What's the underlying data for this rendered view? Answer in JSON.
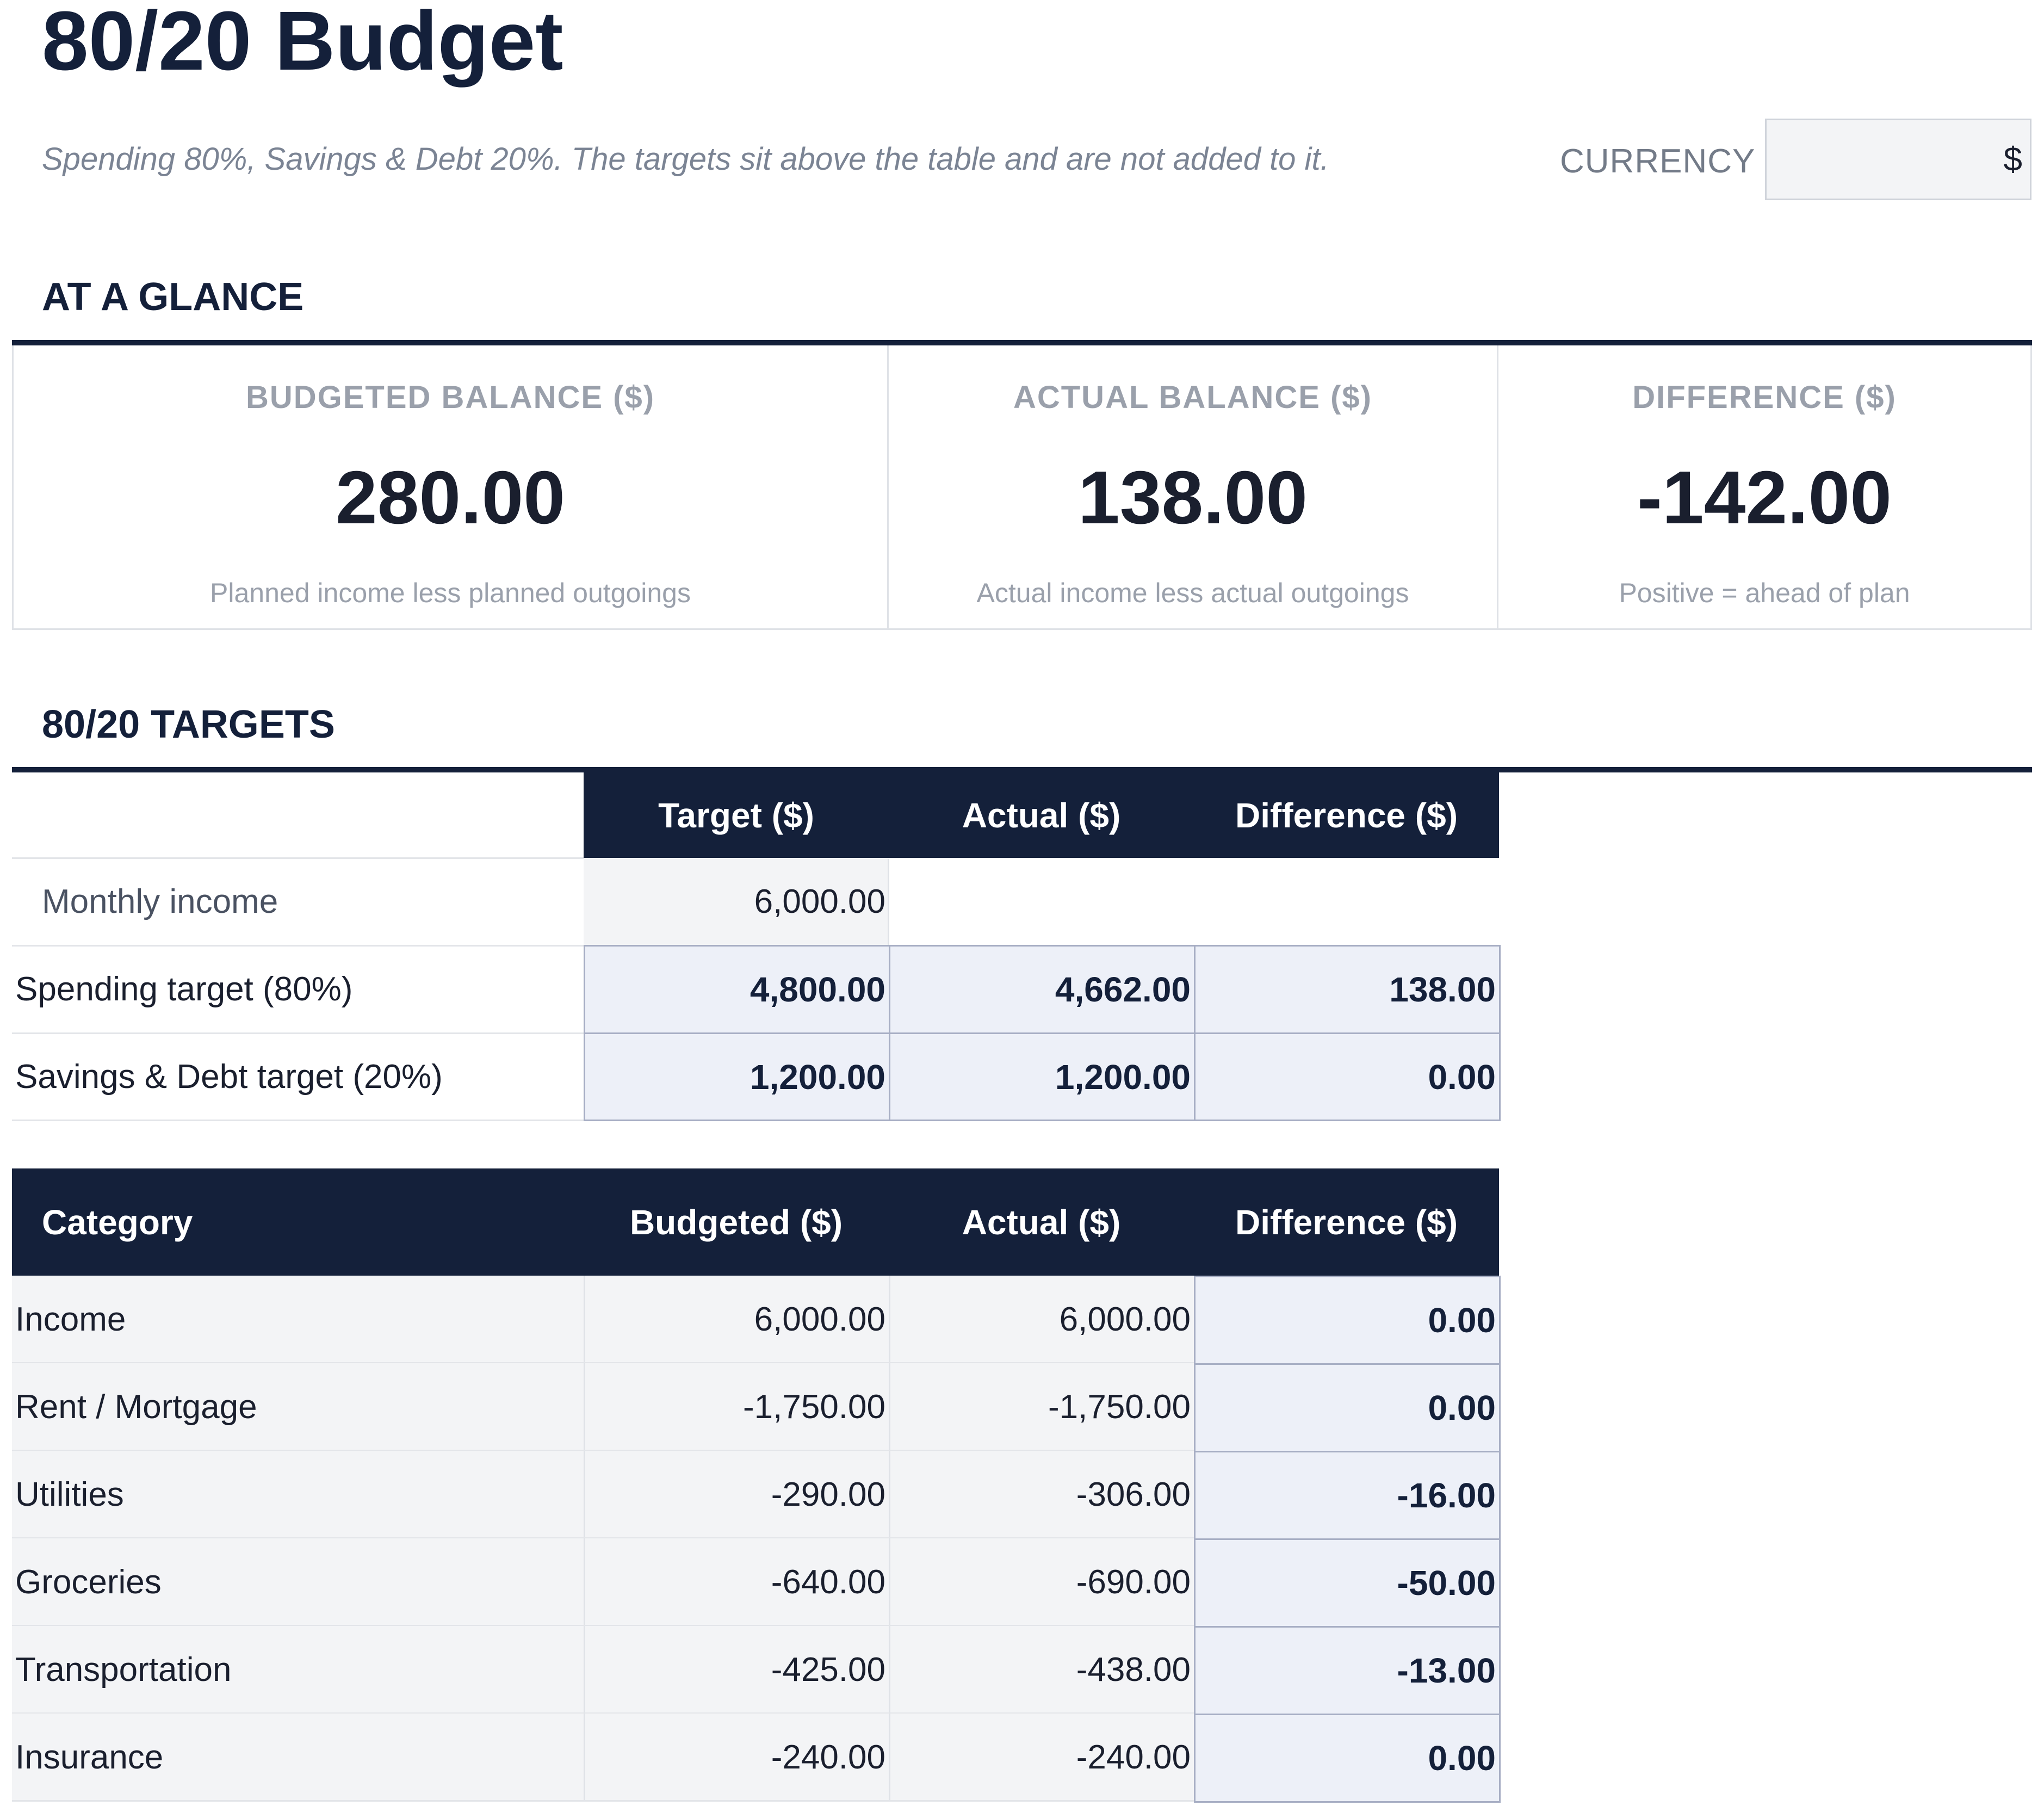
{
  "title": "80/20 Budget",
  "subtitle": "Spending 80%, Savings & Debt 20%. The targets sit above the table and are not added to it.",
  "currency": {
    "label": "CURRENCY",
    "value": "$"
  },
  "at_a_glance": {
    "title": "AT A GLANCE",
    "cards": [
      {
        "label": "BUDGETED BALANCE ($)",
        "value": "280.00",
        "note": "Planned income less planned outgoings"
      },
      {
        "label": "ACTUAL BALANCE ($)",
        "value": "138.00",
        "note": "Actual income less actual outgoings"
      },
      {
        "label": "DIFFERENCE ($)",
        "value": "-142.00",
        "note": "Positive = ahead of plan"
      }
    ]
  },
  "targets": {
    "title": "80/20 TARGETS",
    "headers": [
      "Target ($)",
      "Actual ($)",
      "Difference ($)"
    ],
    "rows": [
      {
        "label": "Monthly income",
        "target": "6,000.00",
        "actual": "",
        "difference": ""
      },
      {
        "label": "Spending target (80%)",
        "target": "4,800.00",
        "actual": "4,662.00",
        "difference": "138.00"
      },
      {
        "label": "Savings & Debt target (20%)",
        "target": "1,200.00",
        "actual": "1,200.00",
        "difference": "0.00"
      }
    ]
  },
  "categories": {
    "headers": [
      "Category",
      "Budgeted ($)",
      "Actual ($)",
      "Difference ($)"
    ],
    "rows": [
      {
        "category": "Income",
        "budgeted": "6,000.00",
        "actual": "6,000.00",
        "difference": "0.00"
      },
      {
        "category": "Rent / Mortgage",
        "budgeted": "-1,750.00",
        "actual": "-1,750.00",
        "difference": "0.00"
      },
      {
        "category": "Utilities",
        "budgeted": "-290.00",
        "actual": "-306.00",
        "difference": "-16.00"
      },
      {
        "category": "Groceries",
        "budgeted": "-640.00",
        "actual": "-690.00",
        "difference": "-50.00"
      },
      {
        "category": "Transportation",
        "budgeted": "-425.00",
        "actual": "-438.00",
        "difference": "-13.00"
      },
      {
        "category": "Insurance",
        "budgeted": "-240.00",
        "actual": "-240.00",
        "difference": "0.00"
      }
    ]
  }
}
